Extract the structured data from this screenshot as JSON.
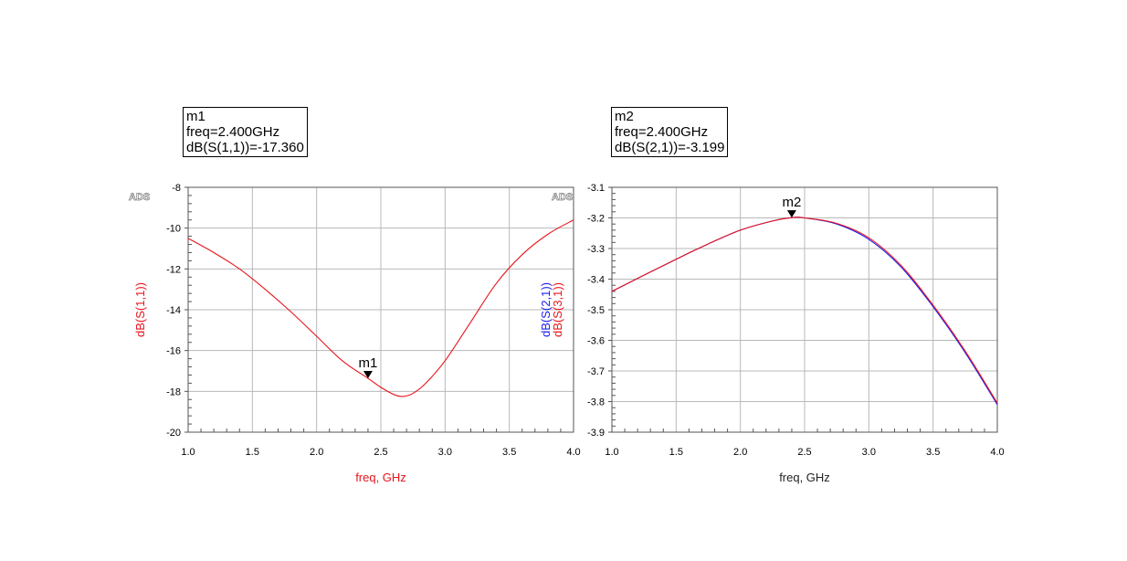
{
  "markers": [
    {
      "name": "m1",
      "freq_line": "freq=2.400GHz",
      "value_line": "dB(S(1,1))=-17.360"
    },
    {
      "name": "m2",
      "freq_line": "freq=2.400GHz",
      "value_line": "dB(S(2,1))=-3.199"
    }
  ],
  "watermark": "ADS",
  "chart_data": [
    {
      "type": "line",
      "xlabel": "freq, GHz",
      "ylabel_series": [
        "dB(S(1,1))"
      ],
      "xlim": [
        1.0,
        4.0
      ],
      "ylim": [
        -20,
        -8
      ],
      "xticks": [
        "1.0",
        "1.5",
        "2.0",
        "2.5",
        "3.0",
        "3.5",
        "4.0"
      ],
      "yticks": [
        "-20",
        "-18",
        "-16",
        "-14",
        "-12",
        "-10",
        "-8"
      ],
      "grid": true,
      "series": [
        {
          "name": "dB(S(1,1))",
          "color": "#e8141c",
          "x": [
            1.0,
            1.2,
            1.4,
            1.6,
            1.8,
            2.0,
            2.2,
            2.4,
            2.5,
            2.6,
            2.67,
            2.75,
            2.85,
            3.0,
            3.2,
            3.4,
            3.6,
            3.8,
            4.0
          ],
          "y": [
            -10.5,
            -11.2,
            -12.0,
            -13.0,
            -14.1,
            -15.3,
            -16.5,
            -17.36,
            -17.8,
            -18.15,
            -18.25,
            -18.1,
            -17.6,
            -16.5,
            -14.6,
            -12.7,
            -11.3,
            -10.3,
            -9.6
          ]
        }
      ],
      "marker": {
        "label": "m1",
        "x": 2.4,
        "y": -17.36
      }
    },
    {
      "type": "line",
      "xlabel": "freq, GHz",
      "ylabel_series": [
        "dB(S(2,1))",
        "dB(S(3,1))"
      ],
      "xlim": [
        1.0,
        4.0
      ],
      "ylim": [
        -3.9,
        -3.1
      ],
      "xticks": [
        "1.0",
        "1.5",
        "2.0",
        "2.5",
        "3.0",
        "3.5",
        "4.0"
      ],
      "yticks": [
        "-3.9",
        "-3.8",
        "-3.7",
        "-3.6",
        "-3.5",
        "-3.4",
        "-3.3",
        "-3.2",
        "-3.1"
      ],
      "grid": true,
      "series": [
        {
          "name": "dB(S(2,1))",
          "color": "#1c1cf0",
          "x": [
            1.0,
            1.25,
            1.5,
            1.75,
            2.0,
            2.25,
            2.4,
            2.5,
            2.75,
            3.0,
            3.25,
            3.5,
            3.75,
            4.0
          ],
          "y": [
            -3.44,
            -3.387,
            -3.335,
            -3.285,
            -3.24,
            -3.21,
            -3.199,
            -3.2,
            -3.22,
            -3.27,
            -3.36,
            -3.49,
            -3.64,
            -3.81
          ]
        },
        {
          "name": "dB(S(3,1))",
          "color": "#e8141c",
          "x": [
            1.0,
            1.25,
            1.5,
            1.75,
            2.0,
            2.25,
            2.4,
            2.5,
            2.75,
            3.0,
            3.25,
            3.5,
            3.75,
            4.0
          ],
          "y": [
            -3.44,
            -3.387,
            -3.335,
            -3.285,
            -3.24,
            -3.21,
            -3.199,
            -3.2,
            -3.218,
            -3.265,
            -3.355,
            -3.485,
            -3.635,
            -3.805
          ]
        }
      ],
      "marker": {
        "label": "m2",
        "x": 2.4,
        "y": -3.199
      }
    }
  ]
}
